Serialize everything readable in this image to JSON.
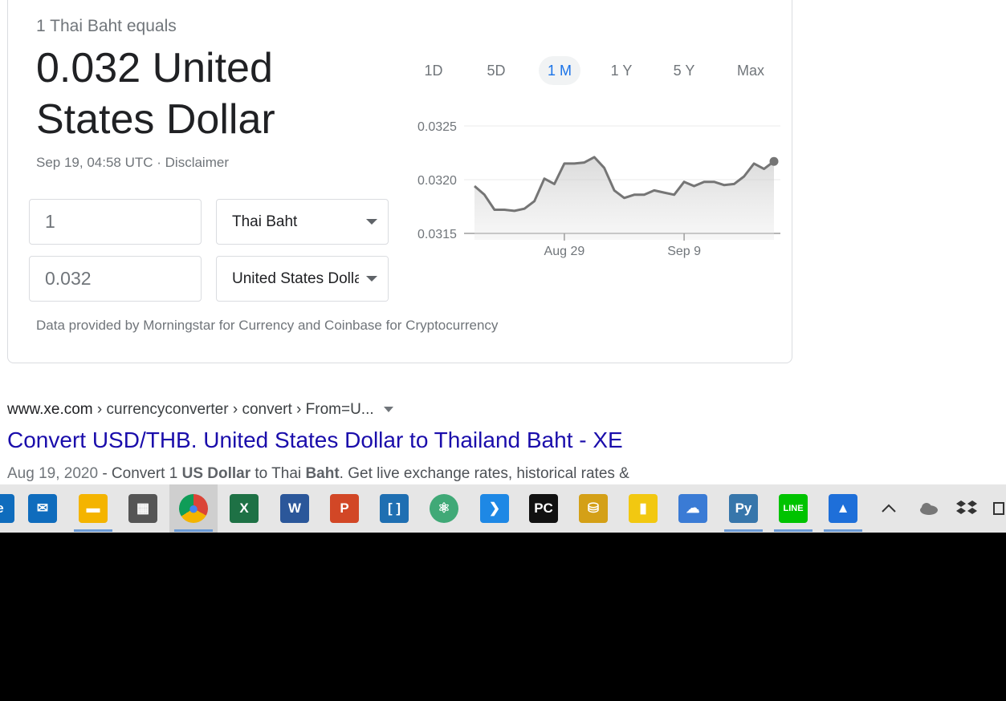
{
  "converter": {
    "equals_text": "1 Thai Baht equals",
    "result_text": "0.032 United States Dollar",
    "timestamp": "Sep 19, 04:58 UTC",
    "separator": " · ",
    "disclaimer": "Disclaimer",
    "amount_from": "1",
    "currency_from": "Thai Baht",
    "amount_to": "0.032",
    "currency_to": "United States Dollar",
    "source_note": "Data provided by Morningstar for Currency and Coinbase for Cryptocurrency"
  },
  "periods": [
    {
      "label": "1D",
      "active": false
    },
    {
      "label": "5D",
      "active": false
    },
    {
      "label": "1 M",
      "active": true
    },
    {
      "label": "1 Y",
      "active": false
    },
    {
      "label": "5 Y",
      "active": false
    },
    {
      "label": "Max",
      "active": false
    }
  ],
  "chart_data": {
    "type": "area",
    "y_tick_labels": [
      "0.0325",
      "0.0320",
      "0.0315"
    ],
    "y_ticks": [
      0.0325,
      0.032,
      0.0315
    ],
    "ylim": [
      0.0315,
      0.0325
    ],
    "x_tick_labels": [
      "Aug 29",
      "Sep 9"
    ],
    "x_tick_index": [
      9,
      21
    ],
    "grid": true,
    "color": "#757575",
    "values": [
      0.03194,
      0.03186,
      0.03172,
      0.03172,
      0.03171,
      0.03173,
      0.0318,
      0.03201,
      0.03196,
      0.03215,
      0.03215,
      0.03216,
      0.03221,
      0.03211,
      0.0319,
      0.03183,
      0.03186,
      0.03186,
      0.0319,
      0.03188,
      0.03186,
      0.03198,
      0.03194,
      0.03198,
      0.03198,
      0.03195,
      0.03196,
      0.03203,
      0.03215,
      0.0321,
      0.03217
    ]
  },
  "result": {
    "breadcrumb_host": "www.xe.com",
    "breadcrumb_path": " › currencyconverter › convert › From=U...",
    "title": "Convert USD/THB. United States Dollar to Thailand Baht - XE",
    "snippet_date": "Aug 19, 2020",
    "snippet_a": " - Convert 1 ",
    "snippet_b1": "US Dollar",
    "snippet_c": " to Thai ",
    "snippet_b2": "Baht",
    "snippet_d": ". Get live exchange rates, historical rates &"
  },
  "taskbar": {
    "apps": [
      {
        "name": "edge",
        "color": "#0f6cbd",
        "glyph": "e"
      },
      {
        "name": "mail",
        "color": "#0f6cbd",
        "glyph": "✉"
      },
      {
        "name": "file-explorer",
        "color": "#f4b400",
        "glyph": "▬"
      },
      {
        "name": "calculator",
        "color": "#555555",
        "glyph": "▦"
      },
      {
        "name": "chrome",
        "color": "#db4437",
        "glyph": "●"
      },
      {
        "name": "excel",
        "color": "#1e7145",
        "glyph": "X"
      },
      {
        "name": "word",
        "color": "#2b579a",
        "glyph": "W"
      },
      {
        "name": "powerpoint",
        "color": "#d24726",
        "glyph": "P"
      },
      {
        "name": "bracket-app",
        "color": "#1f6fb2",
        "glyph": "[ ]"
      },
      {
        "name": "atom",
        "color": "#40a977",
        "glyph": "⚛"
      },
      {
        "name": "vscode",
        "color": "#1e88e5",
        "glyph": "❯"
      },
      {
        "name": "pycharm",
        "color": "#111111",
        "glyph": "PC"
      },
      {
        "name": "database-tool",
        "color": "#d4a017",
        "glyph": "⛁"
      },
      {
        "name": "power-bi",
        "color": "#f2c811",
        "glyph": "▮"
      },
      {
        "name": "cloud-settings",
        "color": "#3a7bd5",
        "glyph": "☁"
      },
      {
        "name": "python",
        "color": "#3776ab",
        "glyph": "Py"
      },
      {
        "name": "line",
        "color": "#00c300",
        "glyph": "LINE"
      },
      {
        "name": "photos",
        "color": "#1e6fd9",
        "glyph": "▲"
      }
    ]
  }
}
